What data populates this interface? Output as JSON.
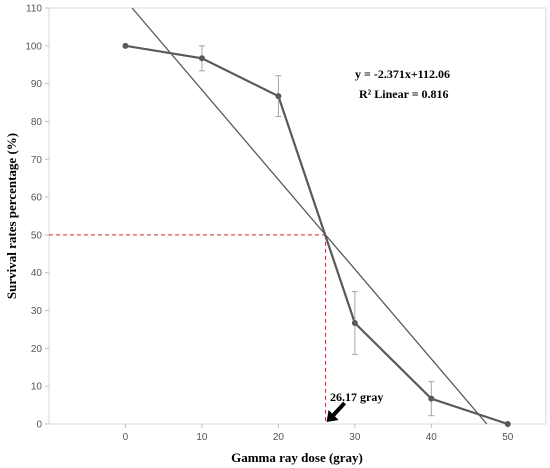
{
  "chart_data": {
    "type": "line",
    "xlabel": "Gamma ray dose (gray)",
    "ylabel": "Survival rates percentage (%)",
    "xlim": [
      -10,
      55
    ],
    "ylim": [
      0,
      110
    ],
    "x_ticks": [
      0,
      10,
      20,
      30,
      40,
      50
    ],
    "y_ticks": [
      0,
      10,
      20,
      30,
      40,
      50,
      60,
      70,
      80,
      90,
      100,
      110
    ],
    "grid": false,
    "series": [
      {
        "x": [
          0,
          10,
          20,
          30,
          40,
          50
        ],
        "y": [
          100,
          96.7,
          86.7,
          26.7,
          6.7,
          0
        ],
        "error": [
          0,
          3.3,
          5.4,
          8.3,
          4.5,
          0
        ],
        "color": "#595959"
      }
    ],
    "trendline": {
      "slope": -2.371,
      "intercept": 112.06,
      "color": "#595959"
    },
    "equation_text": "y = -2.371x+112.06",
    "r2_text": "R² Linear = 0.816",
    "reference": {
      "x": 26.17,
      "y": 50,
      "color": "#d62728"
    },
    "annotation_text": "26.17 gray"
  }
}
